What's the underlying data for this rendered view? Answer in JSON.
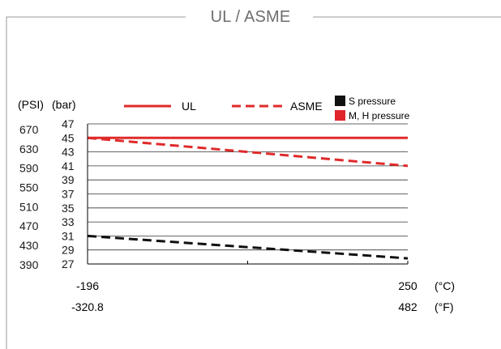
{
  "chart_data": {
    "type": "line",
    "title": "UL / ASME",
    "x_range": [
      -196,
      250
    ],
    "x_tick_labels_celsius": [
      "-196",
      "250"
    ],
    "x_tick_labels_fahrenheit": [
      "-320.8",
      "482"
    ],
    "x_unit_celsius": "(°C)",
    "x_unit_fahrenheit": "(°F)",
    "y_range": [
      27,
      47
    ],
    "y_ticks_bar": [
      27,
      29,
      31,
      33,
      35,
      37,
      39,
      41,
      43,
      45,
      47
    ],
    "y_ticks_psi": [
      390,
      430,
      470,
      510,
      550,
      590,
      630,
      670
    ],
    "y_unit_bar": "(bar)",
    "y_unit_psi": "(PSI)",
    "grid": true,
    "legend_lines": [
      {
        "label": "UL",
        "style": "solid",
        "color": "#e02a2a"
      },
      {
        "label": "ASME",
        "style": "dashed",
        "color": "#e02a2a"
      }
    ],
    "legend_colors": [
      {
        "label": "S pressure",
        "color": "#111111"
      },
      {
        "label": "M, H pressure",
        "color": "#e0262b"
      }
    ],
    "series": [
      {
        "legend": "UL",
        "group": "M, H pressure",
        "style": "solid",
        "color": "#e02a2a",
        "x": [
          -196,
          250
        ],
        "y": [
          45.0,
          45.0
        ]
      },
      {
        "legend": "ASME",
        "group": "M, H pressure",
        "style": "dashed",
        "color": "#e02a2a",
        "x": [
          -196,
          250
        ],
        "y": [
          45.0,
          41.0
        ]
      },
      {
        "legend": "ASME",
        "group": "S pressure",
        "style": "dashed",
        "color": "#111111",
        "x": [
          -196,
          250
        ],
        "y": [
          31.0,
          27.8
        ]
      }
    ]
  }
}
